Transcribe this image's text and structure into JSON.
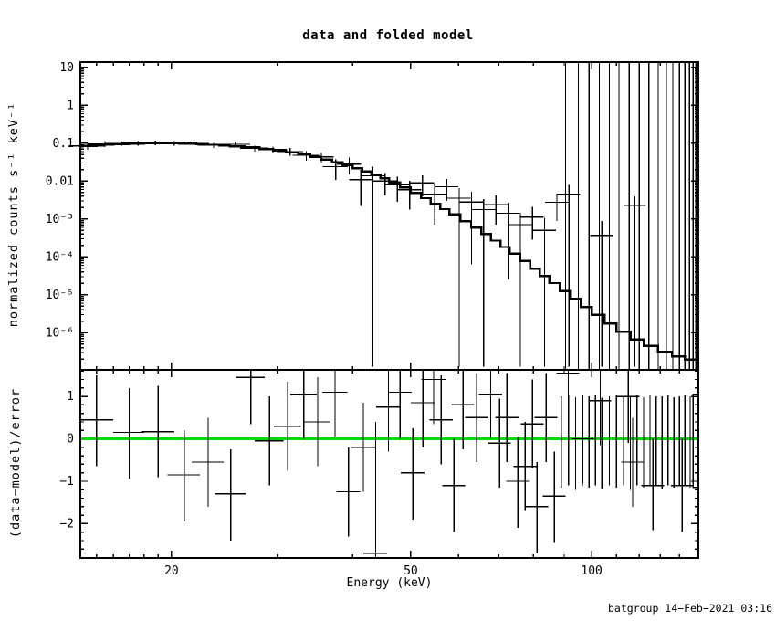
{
  "colors": {
    "foreground": "#000000",
    "background": "#ffffff",
    "zero_line_green": "#00dd00"
  },
  "footer": {
    "credit": "batgroup 14−Feb−2021 03:16"
  },
  "chart_data": {
    "type": "line",
    "title": "data and folded model",
    "xlabel": "Energy (keV)",
    "x_scale": "log",
    "x_range_kev": [
      14.1,
      150.5
    ],
    "x_major_ticks": [
      {
        "v": 20,
        "label": "20"
      },
      {
        "v": 50,
        "label": "50"
      },
      {
        "v": 100,
        "label": "100"
      }
    ],
    "x_minor_ticks": [
      15,
      16,
      17,
      18,
      19,
      30,
      40,
      60,
      70,
      80,
      90,
      110,
      120,
      130,
      140,
      150
    ],
    "grid": "off",
    "legend": "none",
    "top_panel": {
      "ylabel": "normalized counts s⁻¹ keV⁻¹",
      "y_scale": "log",
      "ylog_range": [
        -6.98,
        1.14
      ],
      "y_major_ticks": [
        {
          "logy": 1,
          "label": "10"
        },
        {
          "logy": 0,
          "label": "1"
        },
        {
          "logy": -1,
          "label": "0.1"
        },
        {
          "logy": -2,
          "label": "0.01"
        },
        {
          "logy": -3,
          "label": "10⁻³"
        },
        {
          "logy": -4,
          "label": "10⁻⁴"
        },
        {
          "logy": -5,
          "label": "10⁻⁵"
        },
        {
          "logy": -6,
          "label": "10⁻⁶"
        }
      ],
      "model_step_kev_logy": [
        [
          14.0,
          -1.07
        ],
        [
          15,
          -1.04
        ],
        [
          16,
          -1.02
        ],
        [
          17,
          -1.01
        ],
        [
          18,
          -1.0
        ],
        [
          19,
          -1.0
        ],
        [
          20,
          -1.0
        ],
        [
          21,
          -1.01
        ],
        [
          22,
          -1.02
        ],
        [
          23,
          -1.04
        ],
        [
          24,
          -1.06
        ],
        [
          25,
          -1.08
        ],
        [
          26.5,
          -1.11
        ],
        [
          28,
          -1.15
        ],
        [
          29.5,
          -1.19
        ],
        [
          31,
          -1.24
        ],
        [
          32.5,
          -1.3
        ],
        [
          34,
          -1.36
        ],
        [
          35.5,
          -1.43
        ],
        [
          37,
          -1.5
        ],
        [
          38.5,
          -1.58
        ],
        [
          40,
          -1.66
        ],
        [
          41.5,
          -1.75
        ],
        [
          43,
          -1.84
        ],
        [
          44.5,
          -1.93
        ],
        [
          46,
          -2.03
        ],
        [
          48,
          -2.17
        ],
        [
          50,
          -2.31
        ],
        [
          52,
          -2.45
        ],
        [
          54,
          -2.6
        ],
        [
          56,
          -2.74
        ],
        [
          58,
          -2.88
        ],
        [
          60.5,
          -3.06
        ],
        [
          63,
          -3.23
        ],
        [
          65.5,
          -3.4
        ],
        [
          68,
          -3.57
        ],
        [
          70.5,
          -3.74
        ],
        [
          73,
          -3.91
        ],
        [
          76,
          -4.11
        ],
        [
          79,
          -4.31
        ],
        [
          82,
          -4.5
        ],
        [
          85,
          -4.69
        ],
        [
          88.5,
          -4.9
        ],
        [
          92,
          -5.1
        ],
        [
          96,
          -5.32
        ],
        [
          100,
          -5.53
        ],
        [
          105,
          -5.76
        ],
        [
          110,
          -5.97
        ],
        [
          116,
          -6.18
        ],
        [
          122,
          -6.35
        ],
        [
          129,
          -6.5
        ],
        [
          136,
          -6.62
        ],
        [
          143,
          -6.71
        ],
        [
          150.5,
          -6.8
        ]
      ],
      "points": [
        {
          "e": 14.5,
          "w": 1.0,
          "logy": -1.07,
          "lo": -1.17,
          "hi": -0.99
        },
        {
          "e": 15.5,
          "w": 1.0,
          "logy": -1.02,
          "lo": -1.1,
          "hi": -0.95
        },
        {
          "e": 16.5,
          "w": 1.0,
          "logy": -1.01,
          "lo": -1.08,
          "hi": -0.95
        },
        {
          "e": 17.6,
          "w": 1.1,
          "logy": -1.0,
          "lo": -1.07,
          "hi": -0.94
        },
        {
          "e": 18.8,
          "w": 1.2,
          "logy": -0.99,
          "lo": -1.05,
          "hi": -0.93
        },
        {
          "e": 20.2,
          "w": 1.2,
          "logy": -1.0,
          "lo": -1.06,
          "hi": -0.94
        },
        {
          "e": 21.8,
          "w": 1.3,
          "logy": -1.02,
          "lo": -1.08,
          "hi": -0.96
        },
        {
          "e": 23.5,
          "w": 1.4,
          "logy": -1.05,
          "lo": -1.12,
          "hi": -0.99
        },
        {
          "e": 25.5,
          "w": 1.5,
          "logy": -1.03,
          "lo": -1.1,
          "hi": -0.97
        },
        {
          "e": 27.5,
          "w": 1.5,
          "logy": -1.13,
          "lo": -1.22,
          "hi": -1.06
        },
        {
          "e": 29.5,
          "w": 1.6,
          "logy": -1.17,
          "lo": -1.27,
          "hi": -1.09
        },
        {
          "e": 31.5,
          "w": 1.6,
          "logy": -1.22,
          "lo": -1.33,
          "hi": -1.13
        },
        {
          "e": 33.5,
          "w": 1.7,
          "logy": -1.32,
          "lo": -1.46,
          "hi": -1.21
        },
        {
          "e": 35.5,
          "w": 1.7,
          "logy": -1.36,
          "lo": -1.51,
          "hi": -1.25
        },
        {
          "e": 37.5,
          "w": 1.8,
          "logy": -1.62,
          "lo": -1.97,
          "hi": -1.43
        },
        {
          "e": 39.5,
          "w": 1.8,
          "logy": -1.55,
          "lo": -1.82,
          "hi": -1.38
        },
        {
          "e": 41.3,
          "w": 1.8,
          "logy": -1.96,
          "lo": -2.65,
          "hi": -1.7
        },
        {
          "e": 43.2,
          "w": 2.0,
          "logy": -1.86,
          "lo": -6.9,
          "hi": -1.62
        },
        {
          "e": 45.3,
          "w": 2.1,
          "logy": -2.0,
          "lo": -2.38,
          "hi": -1.79
        },
        {
          "e": 47.5,
          "w": 2.2,
          "logy": -2.1,
          "lo": -2.55,
          "hi": -1.88
        },
        {
          "e": 49.8,
          "w": 2.3,
          "logy": -2.23,
          "lo": -2.75,
          "hi": -1.99
        },
        {
          "e": 52.3,
          "w": 2.4,
          "logy": -2.05,
          "lo": -2.4,
          "hi": -1.85
        },
        {
          "e": 54.8,
          "w": 2.5,
          "logy": -2.35,
          "lo": -3.15,
          "hi": -2.09
        },
        {
          "e": 57.4,
          "w": 2.6,
          "logy": -2.15,
          "lo": -2.52,
          "hi": -1.94
        },
        {
          "e": 60.2,
          "w": 2.7,
          "logy": -2.45,
          "lo": -6.9,
          "hi": -2.18
        },
        {
          "e": 63.1,
          "w": 2.8,
          "logy": -2.55,
          "lo": -4.2,
          "hi": -2.28
        },
        {
          "e": 66.1,
          "w": 3.0,
          "logy": -2.75,
          "lo": -6.9,
          "hi": -2.47
        },
        {
          "e": 69.3,
          "w": 3.1,
          "logy": -2.62,
          "lo": -3.15,
          "hi": -2.38
        },
        {
          "e": 72.6,
          "w": 3.2,
          "logy": -2.85,
          "lo": -4.6,
          "hi": -2.57
        },
        {
          "e": 76.1,
          "w": 3.4,
          "logy": -3.15,
          "lo": -6.9,
          "hi": -2.84
        },
        {
          "e": 79.7,
          "w": 3.5,
          "logy": -2.95,
          "lo": -3.55,
          "hi": -2.68
        },
        {
          "e": 83.5,
          "w": 3.7,
          "logy": -3.3,
          "lo": -6.9,
          "hi": -2.97
        },
        {
          "e": 87.5,
          "w": 3.9,
          "logy": -2.56,
          "lo": -3.05,
          "hi": -2.33
        },
        {
          "e": 91.7,
          "w": 4.0,
          "logy": -2.35,
          "lo": -6.9,
          "hi": -2.1
        },
        {
          "e": 104.0,
          "w": 4.5,
          "logy": -3.43,
          "lo": -6.9,
          "hi": -3.05
        },
        {
          "e": 118.0,
          "w": 5.0,
          "logy": -2.64,
          "lo": -6.9,
          "hi": -2.4
        }
      ],
      "tall_error_bars_kev": [
        90.5,
        95,
        99,
        103,
        107,
        111,
        115.5,
        120,
        124.5,
        129,
        133,
        136.5,
        140,
        143,
        145.5,
        147.5,
        149,
        150.2
      ]
    },
    "bottom_panel": {
      "ylabel": "(data−model)/error",
      "y_scale": "linear",
      "y_range": [
        -2.81,
        1.627
      ],
      "y_major_ticks": [
        {
          "v": 1,
          "label": "1"
        },
        {
          "v": 0,
          "label": "0"
        },
        {
          "v": -1,
          "label": "−1"
        },
        {
          "v": -2,
          "label": "−2"
        }
      ],
      "y_minor_step": 0.2,
      "zero_line_value": 0,
      "points": [
        {
          "e": 15.0,
          "w": 1.0,
          "r": 0.45,
          "lo": -0.65,
          "hi": 1.5
        },
        {
          "e": 17.0,
          "w": 1.0,
          "r": 0.15,
          "lo": -0.95,
          "hi": 1.2
        },
        {
          "e": 19.0,
          "w": 1.2,
          "r": 0.17,
          "lo": -0.9,
          "hi": 1.25
        },
        {
          "e": 21.0,
          "w": 1.3,
          "r": -0.85,
          "lo": -1.95,
          "hi": 0.2
        },
        {
          "e": 23.0,
          "w": 1.4,
          "r": -0.55,
          "lo": -1.6,
          "hi": 0.5
        },
        {
          "e": 25.1,
          "w": 1.5,
          "r": -1.3,
          "lo": -2.4,
          "hi": -0.25
        },
        {
          "e": 27.1,
          "w": 1.5,
          "r": 1.45,
          "lo": 0.35,
          "hi": 1.63
        },
        {
          "e": 29.1,
          "w": 1.6,
          "r": -0.05,
          "lo": -1.1,
          "hi": 1.0
        },
        {
          "e": 31.2,
          "w": 1.6,
          "r": 0.3,
          "lo": -0.75,
          "hi": 1.35
        },
        {
          "e": 33.2,
          "w": 1.7,
          "r": 1.05,
          "lo": 0.0,
          "hi": 1.63
        },
        {
          "e": 35.0,
          "w": 1.7,
          "r": 0.4,
          "lo": -0.65,
          "hi": 1.45
        },
        {
          "e": 37.4,
          "w": 1.8,
          "r": 1.1,
          "lo": 0.05,
          "hi": 1.63
        },
        {
          "e": 39.4,
          "w": 1.8,
          "r": -1.25,
          "lo": -2.3,
          "hi": -0.2
        },
        {
          "e": 41.7,
          "w": 1.9,
          "r": -0.2,
          "lo": -1.25,
          "hi": 0.85
        },
        {
          "e": 43.7,
          "w": 2.0,
          "r": -2.7,
          "lo": -2.8,
          "hi": 0.4
        },
        {
          "e": 45.9,
          "w": 2.1,
          "r": 0.75,
          "lo": -0.3,
          "hi": 1.63
        },
        {
          "e": 48.0,
          "w": 2.2,
          "r": 1.1,
          "lo": 0.0,
          "hi": 1.63
        },
        {
          "e": 50.4,
          "w": 2.3,
          "r": -0.8,
          "lo": -1.9,
          "hi": 0.25
        },
        {
          "e": 52.4,
          "w": 2.4,
          "r": 0.85,
          "lo": -0.2,
          "hi": 1.63
        },
        {
          "e": 54.6,
          "w": 2.5,
          "r": 1.4,
          "lo": 0.35,
          "hi": 1.63
        },
        {
          "e": 56.2,
          "w": 2.5,
          "r": 0.45,
          "lo": -0.6,
          "hi": 1.5
        },
        {
          "e": 59.0,
          "w": 2.6,
          "r": -1.1,
          "lo": -2.2,
          "hi": 0.0
        },
        {
          "e": 61.1,
          "w": 2.7,
          "r": 0.8,
          "lo": -0.25,
          "hi": 1.63
        },
        {
          "e": 64.4,
          "w": 2.8,
          "r": 0.5,
          "lo": -0.55,
          "hi": 1.55
        },
        {
          "e": 67.9,
          "w": 3.0,
          "r": 1.05,
          "lo": 0.0,
          "hi": 1.63
        },
        {
          "e": 70.3,
          "w": 3.1,
          "r": -0.1,
          "lo": -1.15,
          "hi": 0.95
        },
        {
          "e": 72.3,
          "w": 3.2,
          "r": 0.5,
          "lo": -0.55,
          "hi": 1.55
        },
        {
          "e": 75.4,
          "w": 3.3,
          "r": -1.0,
          "lo": -2.1,
          "hi": 0.05
        },
        {
          "e": 77.5,
          "w": 3.4,
          "r": -0.65,
          "lo": -1.7,
          "hi": 0.4
        },
        {
          "e": 79.7,
          "w": 3.5,
          "r": 0.35,
          "lo": -0.7,
          "hi": 1.4
        },
        {
          "e": 81.1,
          "w": 3.5,
          "r": -1.6,
          "lo": -2.7,
          "hi": -0.55
        },
        {
          "e": 84.0,
          "w": 3.6,
          "r": 0.5,
          "lo": -0.55,
          "hi": 1.55
        },
        {
          "e": 86.7,
          "w": 3.8,
          "r": -1.35,
          "lo": -2.45,
          "hi": -0.3
        },
        {
          "e": 91.4,
          "w": 4.0,
          "r": 1.55,
          "lo": 0.5,
          "hi": 1.63
        },
        {
          "e": 96.6,
          "w": 4.2,
          "r": 0.0,
          "lo": -1.05,
          "hi": 1.05
        },
        {
          "e": 103.3,
          "w": 4.5,
          "r": 0.9,
          "lo": -0.15,
          "hi": 1.63
        },
        {
          "e": 115.1,
          "w": 5.0,
          "r": 1.0,
          "lo": -0.1,
          "hi": 1.63
        },
        {
          "e": 117.0,
          "w": 5.0,
          "r": -0.55,
          "lo": -1.6,
          "hi": 0.5
        },
        {
          "e": 126.5,
          "w": 5.5,
          "r": -1.1,
          "lo": -2.15,
          "hi": 0.0
        },
        {
          "e": 141.5,
          "w": 6.0,
          "r": -1.1,
          "lo": -2.2,
          "hi": 0.0
        }
      ],
      "forest_bars": [
        {
          "e": 89.0,
          "lo": -1.15,
          "hi": 1.0
        },
        {
          "e": 91.5,
          "lo": -1.1,
          "hi": 1.05
        },
        {
          "e": 94.0,
          "lo": -1.2,
          "hi": 0.98
        },
        {
          "e": 96.5,
          "lo": -1.12,
          "hi": 1.02
        },
        {
          "e": 99.0,
          "lo": -1.15,
          "hi": 1.0
        },
        {
          "e": 101.5,
          "lo": -1.1,
          "hi": 1.05
        },
        {
          "e": 104.0,
          "lo": -1.18,
          "hi": 0.97
        },
        {
          "e": 107.0,
          "lo": -1.1,
          "hi": 1.0
        },
        {
          "e": 110.0,
          "lo": -1.15,
          "hi": 1.05
        },
        {
          "e": 113.0,
          "lo": -1.1,
          "hi": 1.0
        },
        {
          "e": 116.0,
          "lo": -1.2,
          "hi": 1.0
        },
        {
          "e": 119.0,
          "lo": -1.1,
          "hi": 1.02
        },
        {
          "e": 122.0,
          "lo": -1.15,
          "hi": 0.98
        },
        {
          "e": 125.0,
          "lo": -1.1,
          "hi": 1.05
        },
        {
          "e": 128.0,
          "lo": -1.12,
          "hi": 1.0
        },
        {
          "e": 131.0,
          "lo": -1.18,
          "hi": 1.0
        },
        {
          "e": 134.0,
          "lo": -1.1,
          "hi": 1.02
        },
        {
          "e": 137.0,
          "lo": -1.15,
          "hi": 0.98
        },
        {
          "e": 140.0,
          "lo": -1.1,
          "hi": 1.0
        },
        {
          "e": 143.0,
          "lo": -1.12,
          "hi": 1.03
        },
        {
          "e": 145.8,
          "lo": -1.15,
          "hi": 1.0
        }
      ],
      "end_box": {
        "e0": 147.6,
        "e1": 150.4,
        "lo": -1.15,
        "hi": 1.05
      }
    }
  }
}
